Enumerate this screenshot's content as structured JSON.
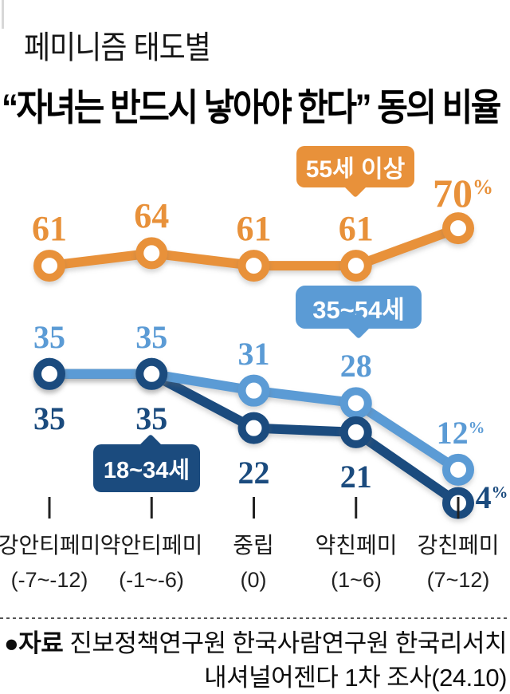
{
  "header": {
    "kicker": "페미니즘 태도별",
    "title": "“자녀는 반드시 낳아야 한다” 동의 비율"
  },
  "chart_data": {
    "type": "line",
    "unit": "%",
    "ylim": [
      0,
      100
    ],
    "grid": false,
    "categories": [
      {
        "name": "강안티페미",
        "range": "(-7~-12)"
      },
      {
        "name": "약안티페미",
        "range": "(-1~-6)"
      },
      {
        "name": "중립",
        "range": "(0)"
      },
      {
        "name": "약친페미",
        "range": "(1~6)"
      },
      {
        "name": "강친페미",
        "range": "(7~12)"
      }
    ],
    "series": [
      {
        "name": "55세 이상",
        "color": "#E8913A",
        "values": [
          61,
          64,
          61,
          61,
          70
        ],
        "labels": [
          "61",
          "64",
          "61",
          "61",
          "70"
        ],
        "last_suffix": "%"
      },
      {
        "name": "35~54세",
        "color": "#5B9BD5",
        "values": [
          35,
          35,
          31,
          28,
          12
        ],
        "labels": [
          "35",
          "35",
          "31",
          "28",
          "12"
        ],
        "last_suffix": "%"
      },
      {
        "name": "18~34세",
        "color": "#1B4B7E",
        "values": [
          35,
          35,
          22,
          21,
          4
        ],
        "labels": [
          "35",
          "35",
          "22",
          "21",
          "4"
        ],
        "last_suffix": "%"
      }
    ]
  },
  "source": {
    "bullet_label": "●자료",
    "line1_rest": " 진보정책연구원 한국사람연구원 한국리서치",
    "line2": "내셔널어젠다 1차 조사(24.10)"
  }
}
